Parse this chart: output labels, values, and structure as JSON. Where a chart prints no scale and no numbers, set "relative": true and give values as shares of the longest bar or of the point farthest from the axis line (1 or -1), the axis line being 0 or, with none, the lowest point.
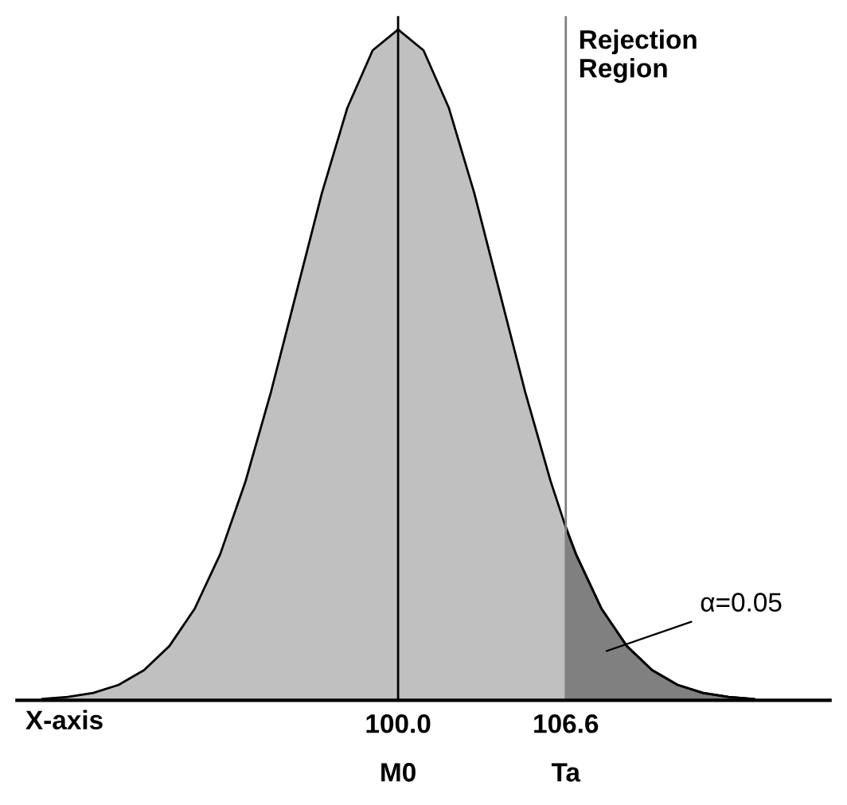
{
  "chart_data": {
    "type": "area",
    "relative": true,
    "xlabel": "X-axis",
    "xlim": [
      85,
      117
    ],
    "xticks": [
      {
        "value": 100,
        "label": "100.0"
      },
      {
        "value": 106.6,
        "label": "106.6"
      }
    ],
    "series": [
      {
        "color": "#c0c0c0",
        "x": [
          86,
          87,
          88,
          89,
          90,
          91,
          92,
          93,
          94,
          95,
          96,
          97,
          98,
          99,
          100,
          101,
          102,
          103,
          104,
          105,
          106,
          106.6,
          107,
          108,
          109,
          110,
          111,
          112,
          113,
          114
        ],
        "values": [
          0.002,
          0.005,
          0.011,
          0.023,
          0.045,
          0.081,
          0.137,
          0.218,
          0.327,
          0.46,
          0.608,
          0.756,
          0.883,
          0.969,
          1,
          0.969,
          0.883,
          0.756,
          0.608,
          0.46,
          0.327,
          0.258,
          0.218,
          0.137,
          0.081,
          0.045,
          0.023,
          0.011,
          0.005,
          0.002
        ]
      },
      {
        "color": "#808080",
        "x": [
          106.6,
          107,
          108,
          109,
          110,
          111,
          112,
          113,
          114
        ],
        "values": [
          0.258,
          0.218,
          0.137,
          0.081,
          0.045,
          0.023,
          0.011,
          0.005,
          0.002
        ]
      }
    ],
    "ref_lines": [
      {
        "axis": "x",
        "value": 100,
        "label": null,
        "color": "#000000"
      },
      {
        "axis": "x",
        "value": 106.6,
        "label": "Rejection\nRegion",
        "color": "#808080"
      }
    ],
    "annotations": [
      "M0",
      "Ta",
      "α=0.05"
    ],
    "grid": false,
    "legend": false
  }
}
